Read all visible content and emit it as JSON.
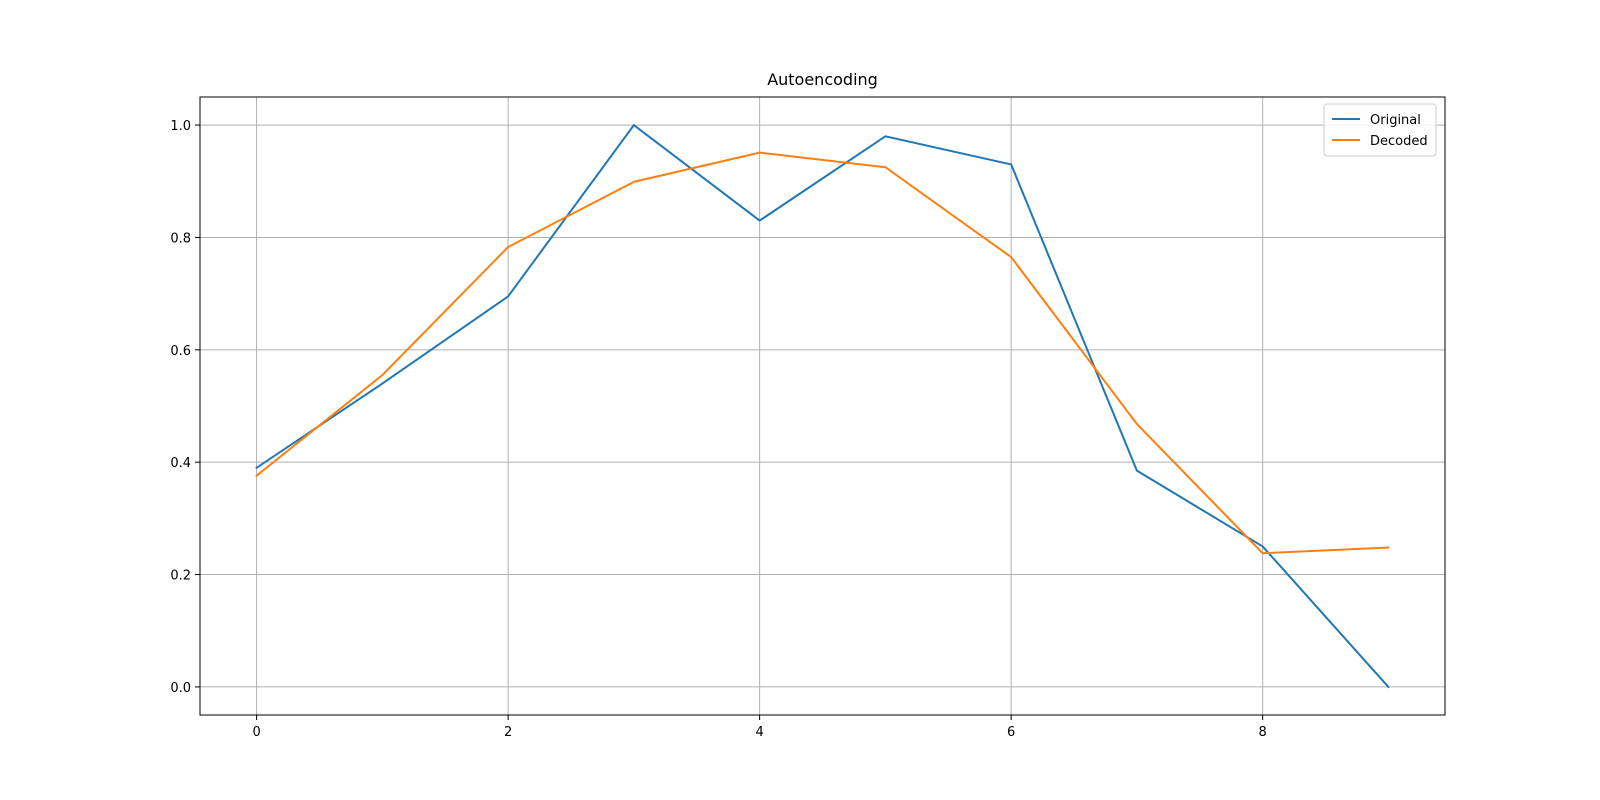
{
  "chart_data": {
    "type": "line",
    "title": "Autoencoding",
    "xlabel": "",
    "ylabel": "",
    "x": [
      0,
      1,
      2,
      3,
      4,
      5,
      6,
      7,
      8,
      9
    ],
    "xlim": [
      -0.45,
      9.45
    ],
    "ylim": [
      -0.05,
      1.05
    ],
    "xticks": [
      0,
      2,
      4,
      6,
      8
    ],
    "yticks": [
      0.0,
      0.2,
      0.4,
      0.6,
      0.8,
      1.0
    ],
    "xtick_labels": [
      "0",
      "2",
      "4",
      "6",
      "8"
    ],
    "ytick_labels": [
      "0.0",
      "0.2",
      "0.4",
      "0.6",
      "0.8",
      "1.0"
    ],
    "grid": true,
    "legend_position": "top-right",
    "series": [
      {
        "name": "Original",
        "color": "#1f77b4",
        "values": [
          0.39,
          0.54,
          0.695,
          1.0,
          0.83,
          0.98,
          0.93,
          0.385,
          0.25,
          0.0
        ]
      },
      {
        "name": "Decoded",
        "color": "#ff7f0e",
        "values": [
          0.376,
          0.555,
          0.783,
          0.899,
          0.951,
          0.925,
          0.765,
          0.468,
          0.238,
          0.248
        ]
      }
    ]
  }
}
